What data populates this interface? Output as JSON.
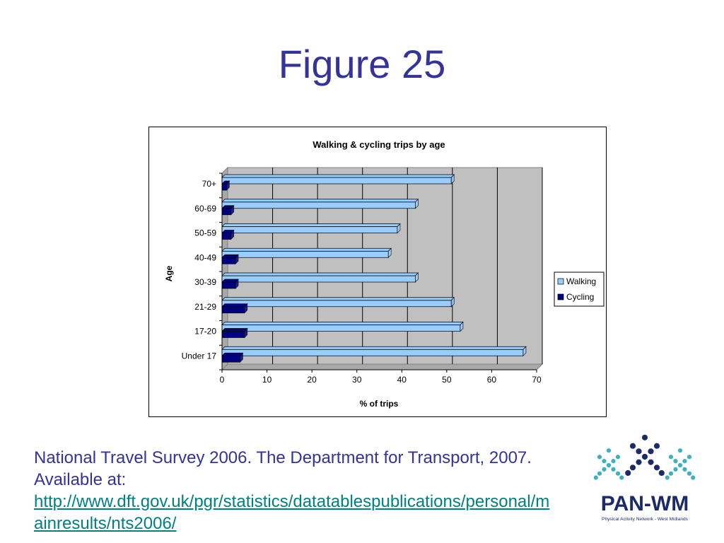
{
  "slide": {
    "title": "Figure 25"
  },
  "caption": {
    "line1": "National Travel Survey 2006. The Department for Transport, 2007.",
    "line2": "Available at:",
    "url_part1": "http://www.dft.gov.uk/pgr/statistics/datatablespublications/personal/m",
    "url_part2": "ainresults/nts2006/"
  },
  "logo": {
    "text": "PAN-WM",
    "subtitle": "Physical Activity Network - West Midlands"
  },
  "colors": {
    "title": "#333399",
    "walking": "#99CCFF",
    "cycling": "#000080",
    "plot_bg": "#C0C0C0",
    "link": "#008080",
    "logo_teal": "#3FB0C0",
    "logo_navy": "#1B2A6B"
  },
  "chart_data": {
    "type": "bar",
    "orientation": "horizontal",
    "title": "Walking & cycling trips by age",
    "xlabel": "% of trips",
    "ylabel": "Age",
    "categories": [
      "70+",
      "60-69",
      "50-59",
      "40-49",
      "30-39",
      "21-29",
      "17-20",
      "Under 17"
    ],
    "series": [
      {
        "name": "Walking",
        "values": [
          51,
          43,
          39,
          37,
          43,
          51,
          53,
          67
        ]
      },
      {
        "name": "Cycling",
        "values": [
          1,
          2,
          2,
          3,
          3,
          5,
          5,
          4
        ]
      }
    ],
    "xlim": [
      0,
      70
    ],
    "xticks": [
      "0",
      "10",
      "20",
      "30",
      "40",
      "50",
      "60",
      "70"
    ],
    "grid": true,
    "legend": "right"
  }
}
